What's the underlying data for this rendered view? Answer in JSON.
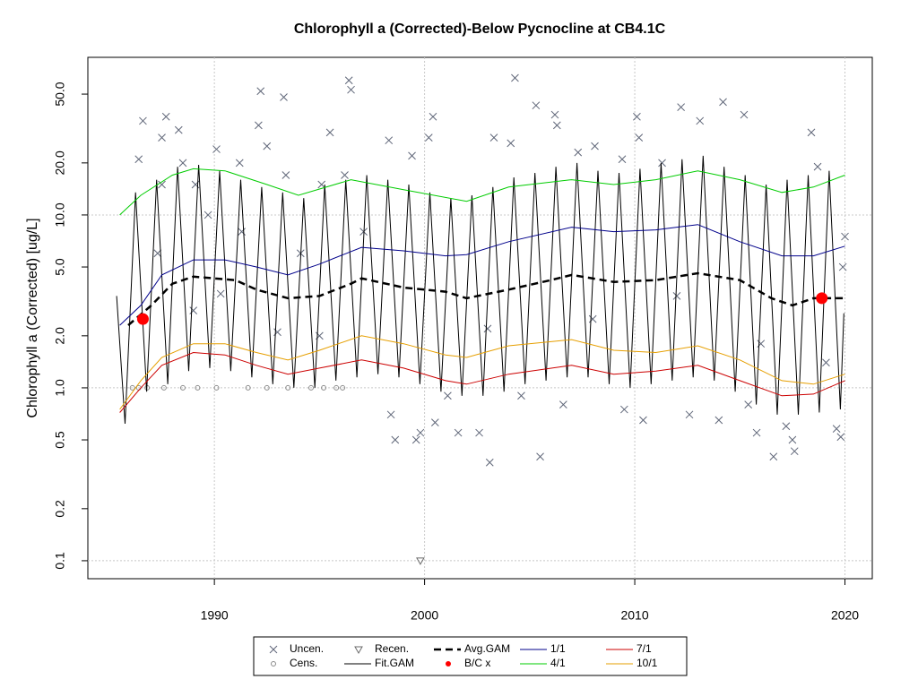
{
  "chart_data": {
    "type": "line",
    "title": "Chlorophyll a (Corrected)-Below Pycnocline at CB4.1C",
    "y_label": "Chlorophyll a (Corrected) [ug/L]",
    "xlim": [
      1983.98,
      2021.3
    ],
    "xticks": [
      1990,
      2000,
      2010,
      2020
    ],
    "yscale": "log",
    "ylim": [
      0.0787,
      81.6
    ],
    "yticks": [
      0.1,
      0.2,
      0.5,
      {
        "value": 1,
        "label": "1.0"
      },
      {
        "value": 2,
        "label": "2.0"
      },
      {
        "value": 5,
        "label": "5.0"
      },
      {
        "value": 10,
        "label": "10.0"
      },
      {
        "value": 20,
        "label": "20.0"
      },
      {
        "value": 50,
        "label": "50.0"
      }
    ],
    "y_grid": [
      0.1,
      1,
      10
    ],
    "grid": true,
    "series": [
      {
        "name": "Uncen.",
        "type": "scatter",
        "marker": "x",
        "color": "#5f6678",
        "x": [
          1986.4,
          1986.6,
          1987.3,
          1987.5,
          1987.7,
          1987.5,
          1988.3,
          1988.5,
          1989.1,
          1989.7,
          1990.1,
          1990.3,
          1991.2,
          1991.3,
          1992.1,
          1992.2,
          1992.5,
          1993.3,
          1993.4,
          1994.1,
          1995.1,
          1995.5,
          1996.2,
          1996.4,
          1996.5,
          1997.1,
          1998.3,
          1998.4,
          1998.6,
          1999.4,
          1999.6,
          1999.8,
          2000.2,
          2000.4,
          2000.5,
          2001.1,
          2001.6,
          2002.6,
          2003.1,
          2003.3,
          2004.1,
          2004.3,
          2004.6,
          2005.3,
          2005.5,
          2006.2,
          2006.3,
          2006.6,
          2007.3,
          2008.1,
          2009.4,
          2009.5,
          2010.1,
          2010.2,
          2010.4,
          2011.3,
          2012.2,
          2012.6,
          2013.1,
          2014.0,
          2014.2,
          2015.2,
          2015.4,
          2015.8,
          2016.6,
          2017.2,
          2017.5,
          2017.6,
          2018.4,
          2018.7,
          2019.1,
          2019.6,
          2019.8,
          2019.9,
          2020.0,
          1995.0,
          2003.0,
          2008.0,
          1989.0,
          1993.0,
          2012.0,
          2016.0
        ],
        "values": [
          21,
          35,
          6,
          15,
          37,
          28,
          31,
          20,
          15,
          10,
          24,
          3.5,
          20,
          8,
          33,
          52,
          25,
          48,
          17,
          6,
          15,
          30,
          17,
          60,
          53,
          8,
          27,
          0.7,
          0.5,
          22,
          0.5,
          0.55,
          28,
          37,
          0.63,
          0.9,
          0.55,
          0.55,
          0.37,
          28,
          26,
          62,
          0.9,
          43,
          0.4,
          38,
          33,
          0.8,
          23,
          25,
          21,
          0.75,
          37,
          28,
          0.65,
          20,
          42,
          0.7,
          35,
          0.65,
          45,
          38,
          0.8,
          0.55,
          0.4,
          0.6,
          0.5,
          0.43,
          30,
          19,
          1.4,
          0.58,
          0.52,
          5,
          7.5,
          2,
          2.2,
          2.5,
          2.8,
          2.1,
          3.4,
          1.8
        ]
      },
      {
        "name": "Cens.",
        "type": "scatter",
        "marker": "circle",
        "color": "#8a8a8a",
        "x": [
          1986.1,
          1986.4,
          1986.8,
          1987.6,
          1988.5,
          1989.2,
          1990.1,
          1991.6,
          1992.5,
          1993.5,
          1994.6,
          1995.2,
          1995.8,
          1996.1
        ],
        "values": [
          1,
          1,
          1,
          1,
          1,
          1,
          1,
          1,
          1,
          1,
          1,
          1,
          1,
          1
        ]
      },
      {
        "name": "Recen.",
        "type": "scatter",
        "marker": "triangle",
        "color": "#6b6b6b",
        "x": [
          1999.8
        ],
        "values": [
          0.1
        ]
      },
      {
        "name": "Fit.GAM",
        "type": "line",
        "color": "#000000",
        "width": 1,
        "x": [
          1985.35,
          1985.75,
          1986.25,
          1986.78,
          1987.25,
          1987.78,
          1988.25,
          1988.78,
          1989.25,
          1989.78,
          1990.25,
          1990.78,
          1991.25,
          1991.78,
          1992.25,
          1992.78,
          1993.25,
          1993.78,
          1994.25,
          1994.78,
          1995.25,
          1995.78,
          1996.25,
          1996.78,
          1997.25,
          1997.78,
          1998.25,
          1998.78,
          1999.25,
          1999.78,
          2000.25,
          2000.78,
          2001.25,
          2001.78,
          2002.25,
          2002.78,
          2003.25,
          2003.78,
          2004.25,
          2004.78,
          2005.25,
          2005.78,
          2006.25,
          2006.78,
          2007.25,
          2007.78,
          2008.25,
          2008.78,
          2009.25,
          2009.78,
          2010.25,
          2010.78,
          2011.25,
          2011.78,
          2012.25,
          2012.78,
          2013.25,
          2013.78,
          2014.25,
          2014.78,
          2015.25,
          2015.78,
          2016.25,
          2016.78,
          2017.25,
          2017.78,
          2018.25,
          2018.78,
          2019.25,
          2019.78,
          2019.95
        ],
        "values": [
          3.4,
          0.62,
          13.5,
          0.95,
          16,
          1.05,
          19,
          1.25,
          19.5,
          1.3,
          18,
          1.25,
          16,
          1.15,
          14.5,
          1.05,
          13.5,
          1.0,
          12.5,
          1.0,
          15,
          1.1,
          16,
          1.15,
          17,
          1.2,
          16,
          1.15,
          15,
          1.05,
          13.5,
          0.95,
          12.5,
          0.9,
          13,
          0.9,
          14.5,
          0.95,
          16.5,
          1.05,
          17.5,
          1.1,
          19,
          1.15,
          20,
          1.15,
          18,
          1.05,
          17.5,
          1.0,
          18.5,
          1.05,
          20,
          1.1,
          21,
          1.15,
          22,
          1.1,
          19,
          0.95,
          17,
          0.8,
          15,
          0.7,
          16,
          0.7,
          17,
          0.72,
          18,
          0.75,
          2.7
        ]
      },
      {
        "name": "Avg.GAM",
        "type": "line",
        "color": "#000000",
        "width": 2.5,
        "dash": true,
        "x": [
          1985.9,
          1987,
          1988,
          1989,
          1991,
          1992,
          1993.5,
          1995,
          1996.5,
          1997,
          1999,
          2001,
          2002,
          2004,
          2006,
          2007,
          2009,
          2011,
          2013,
          2015,
          2016.5,
          2017.5,
          2018.5,
          2019.9
        ],
        "values": [
          2.3,
          3.0,
          4.0,
          4.4,
          4.2,
          3.7,
          3.3,
          3.4,
          4.0,
          4.3,
          3.8,
          3.6,
          3.3,
          3.7,
          4.2,
          4.5,
          4.1,
          4.2,
          4.6,
          4.2,
          3.3,
          3.0,
          3.3,
          3.3
        ]
      },
      {
        "name": "B/C x",
        "type": "scatter",
        "marker": "dot",
        "color": "#ff0000",
        "x": [
          1986.6,
          2018.9
        ],
        "values": [
          2.5,
          3.3
        ]
      },
      {
        "name": "1/1",
        "type": "line",
        "color": "#00008b",
        "width": 1,
        "x": [
          1985.5,
          1986.5,
          1987.5,
          1989,
          1990.5,
          1992,
          1993.5,
          1995,
          1997,
          1999,
          2001,
          2002,
          2004,
          2007,
          2009,
          2011,
          2013,
          2015,
          2017,
          2018.5,
          2020
        ],
        "values": [
          2.3,
          3.0,
          4.5,
          5.5,
          5.5,
          5.0,
          4.5,
          5.2,
          6.5,
          6.2,
          5.8,
          5.9,
          7.0,
          8.5,
          8.0,
          8.2,
          8.8,
          7.0,
          5.8,
          5.8,
          6.6
        ]
      },
      {
        "name": "4/1",
        "type": "line",
        "color": "#00cc00",
        "width": 1,
        "x": [
          1985.5,
          1986.5,
          1988,
          1989,
          1990.5,
          1992.5,
          1994,
          1996.5,
          1999,
          2002,
          2004,
          2007,
          2009,
          2011,
          2013,
          2015,
          2017,
          2018.5,
          2020
        ],
        "values": [
          10,
          13,
          17,
          18.5,
          18,
          15,
          13,
          16,
          14,
          12,
          14.5,
          16,
          15,
          16,
          18,
          16,
          13.5,
          14.5,
          17
        ]
      },
      {
        "name": "7/1",
        "type": "line",
        "color": "#cc0000",
        "width": 1,
        "x": [
          1985.5,
          1986.5,
          1987.5,
          1989,
          1990.5,
          1992,
          1993.5,
          1995,
          1997,
          1999,
          2001,
          2002,
          2004,
          2007,
          2009,
          2011,
          2013,
          2015,
          2017,
          2018.5,
          2020
        ],
        "values": [
          0.72,
          1.0,
          1.35,
          1.6,
          1.55,
          1.35,
          1.2,
          1.3,
          1.45,
          1.3,
          1.1,
          1.05,
          1.2,
          1.35,
          1.2,
          1.25,
          1.35,
          1.1,
          0.9,
          0.92,
          1.1
        ]
      },
      {
        "name": "10/1",
        "type": "line",
        "color": "#e69f00",
        "width": 1,
        "x": [
          1985.5,
          1986.5,
          1987.5,
          1989,
          1990.5,
          1992,
          1993.5,
          1995,
          1997,
          1999,
          2001,
          2002,
          2004,
          2007,
          2009,
          2011,
          2013,
          2015,
          2017,
          2018.5,
          2020
        ],
        "values": [
          0.75,
          1.1,
          1.5,
          1.8,
          1.8,
          1.6,
          1.45,
          1.65,
          2.0,
          1.8,
          1.55,
          1.5,
          1.75,
          1.9,
          1.65,
          1.6,
          1.75,
          1.45,
          1.1,
          1.05,
          1.2
        ]
      }
    ]
  }
}
